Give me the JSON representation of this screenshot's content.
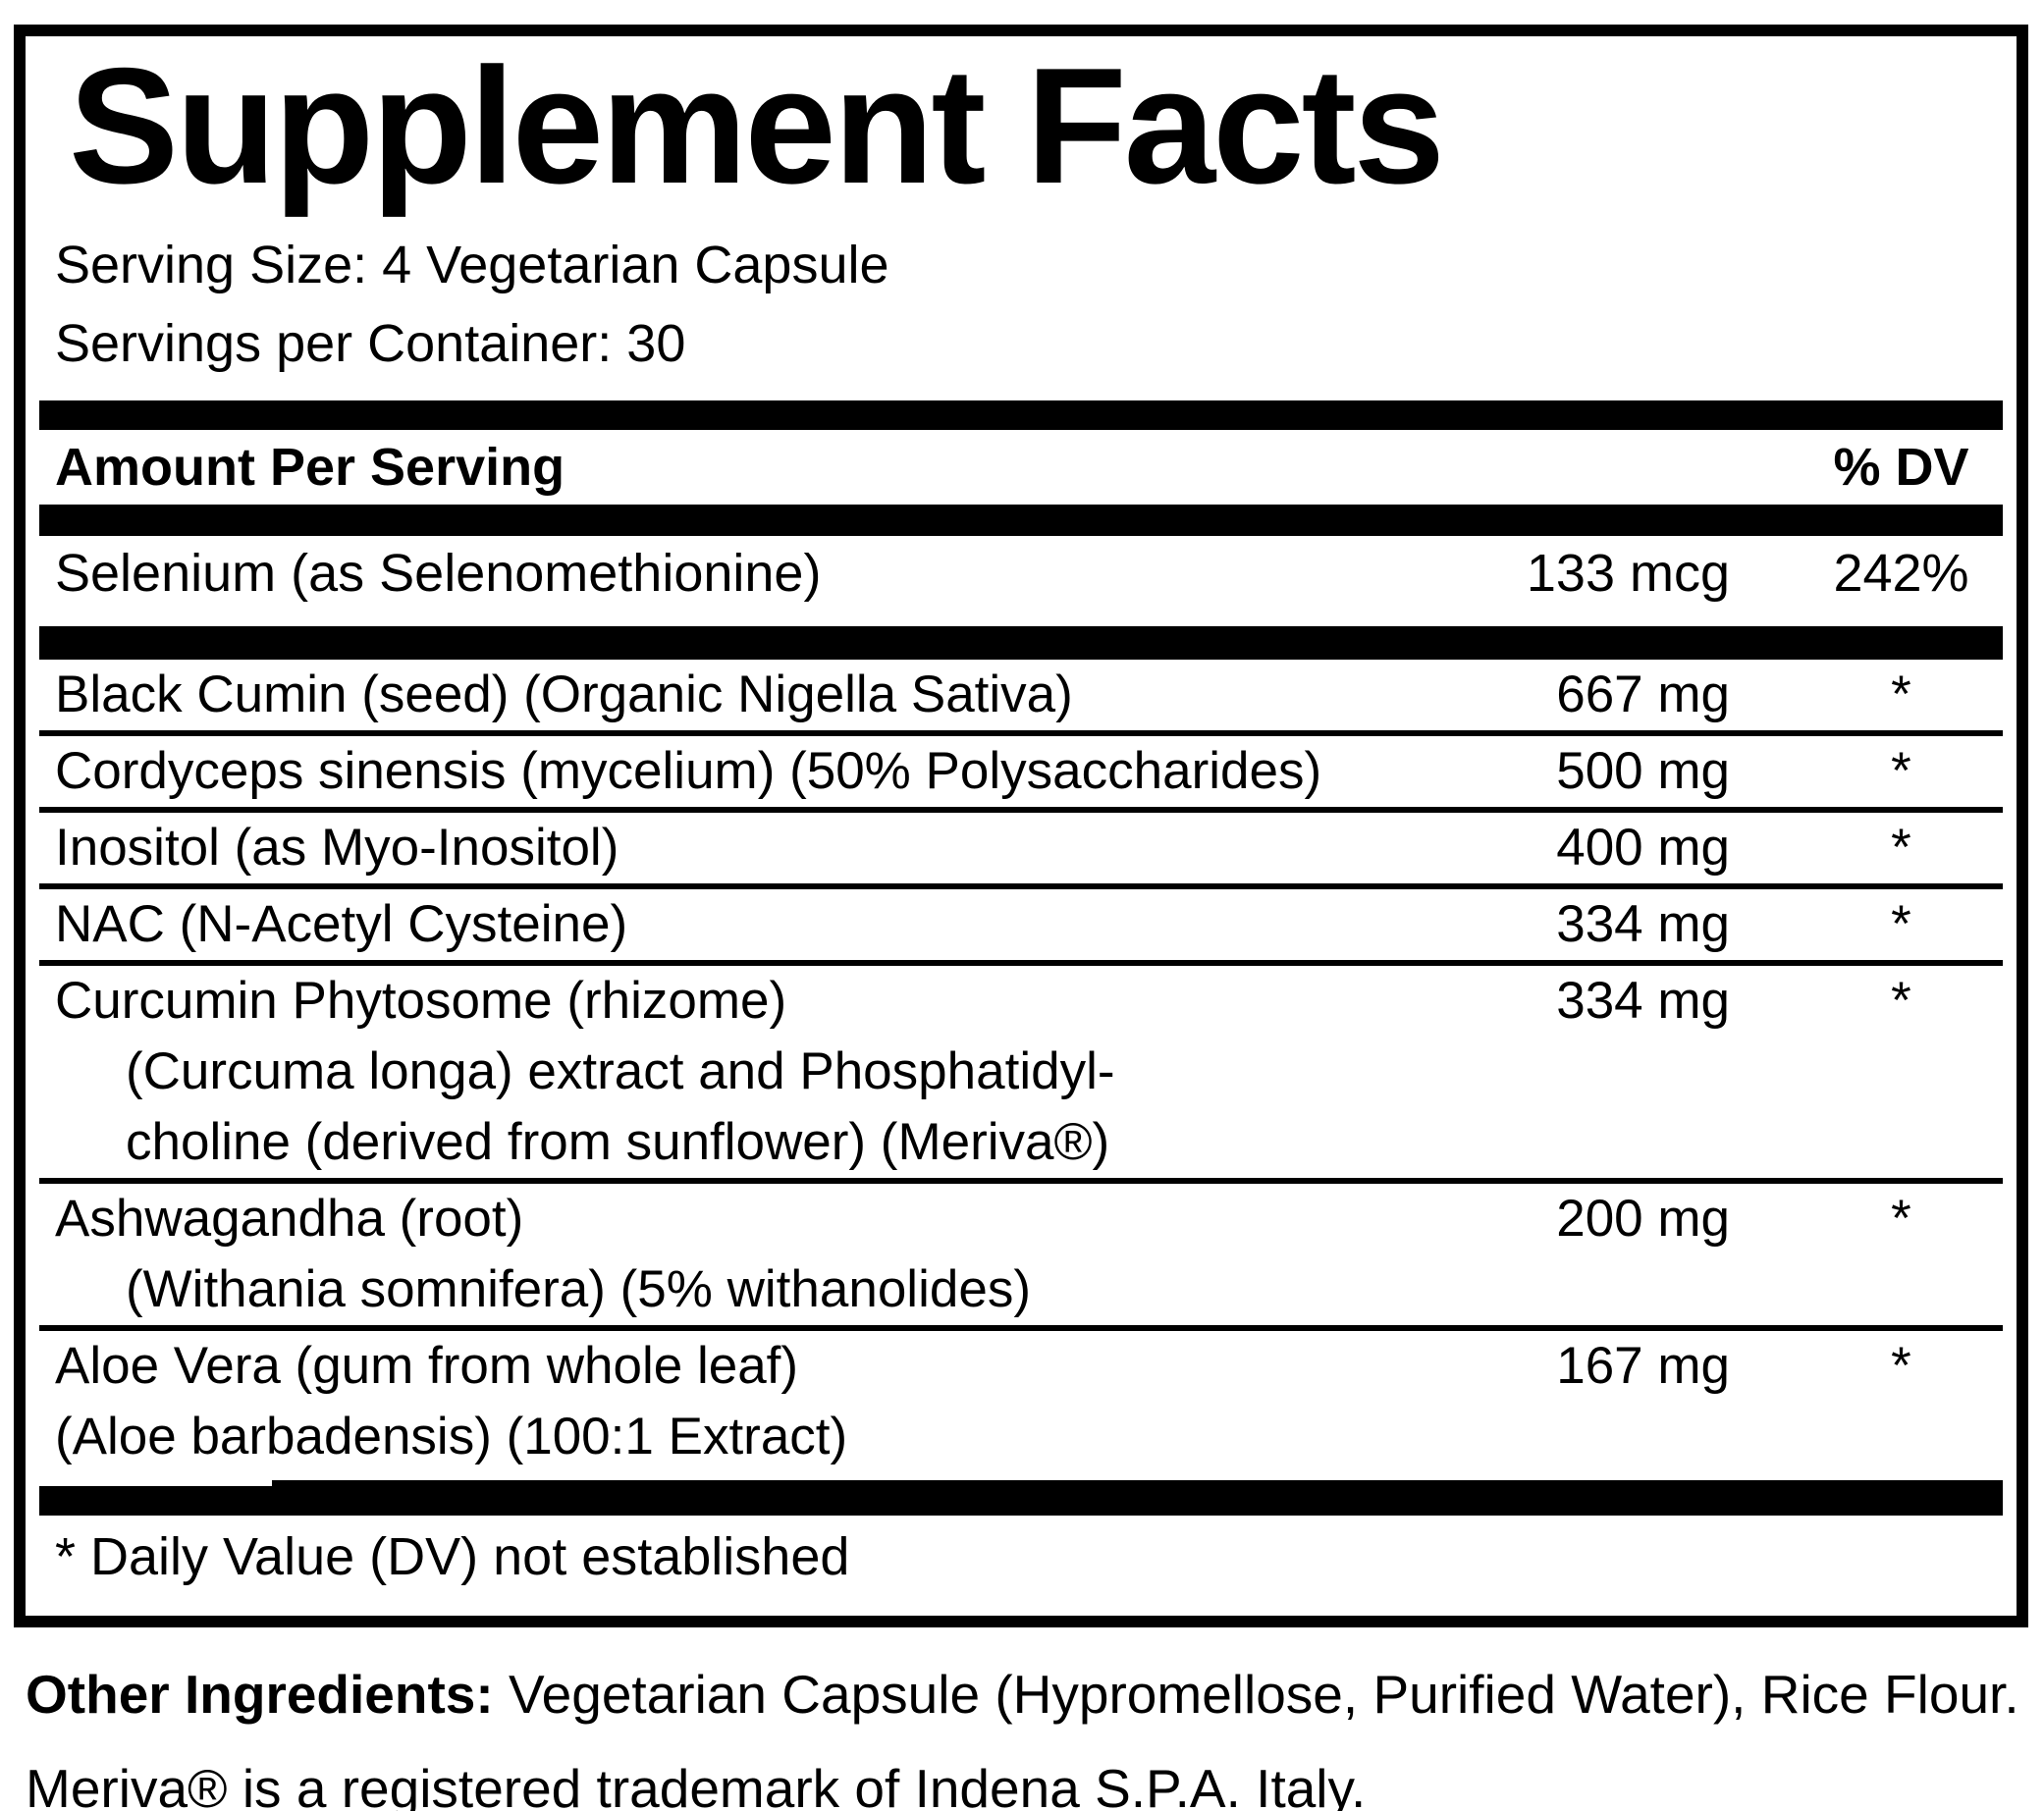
{
  "panel": {
    "title": "Supplement Facts",
    "serving_size": "Serving Size: 4 Vegetarian Capsule",
    "servings_per_container": "Servings per Container: 30",
    "columns": {
      "amount_header": "Amount Per Serving",
      "dv_header": "% DV"
    },
    "nutrients": [
      {
        "name": "Selenium (as Selenomethionine)",
        "amount": "133 mcg",
        "dv": "242%"
      }
    ],
    "ingredients": [
      {
        "name": "Black Cumin (seed) (Organic Nigella Sativa)",
        "amount": "667 mg",
        "dv": "*"
      },
      {
        "name": "Cordyceps sinensis (mycelium) (50% Polysaccharides)",
        "amount": "500 mg",
        "dv": "*"
      },
      {
        "name": "Inositol (as Myo-Inositol)",
        "amount": "400 mg",
        "dv": "*"
      },
      {
        "name": "NAC (N-Acetyl Cysteine)",
        "amount": "334 mg",
        "dv": "*"
      },
      {
        "name": "Curcumin Phytosome (rhizome)",
        "sub": [
          "(Curcuma longa) extract and Phosphatidyl-",
          "choline (derived from sunflower) (Meriva®)"
        ],
        "amount": "334 mg",
        "dv": "*"
      },
      {
        "name": "Ashwagandha (root)",
        "sub": [
          "(Withania somnifera) (5% withanolides)"
        ],
        "amount": "200 mg",
        "dv": "*"
      },
      {
        "name": "Aloe Vera (gum from whole leaf)",
        "sub": [
          "(Aloe barbadensis) (100:1 Extract)"
        ],
        "amount": "167 mg",
        "dv": "*"
      }
    ],
    "footnote": "* Daily Value (DV) not established"
  },
  "below": {
    "other_ingredients_label": "Other Ingredients:",
    "other_ingredients_text": " Vegetarian Capsule (Hypromellose, Purified Water), Rice Flour.",
    "trademark_note": "Meriva® is a registered trademark of Indena S.P.A. Italy."
  },
  "colors": {
    "ink": "#000000",
    "background": "#ffffff"
  }
}
